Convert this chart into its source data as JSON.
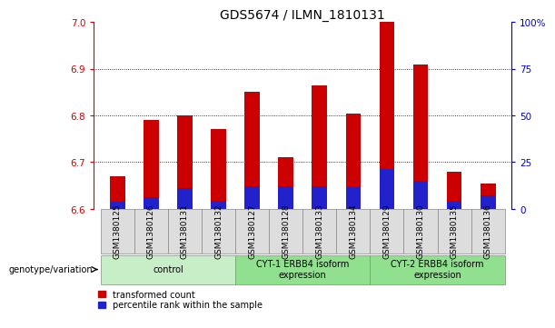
{
  "title": "GDS5674 / ILMN_1810131",
  "samples": [
    "GSM1380125",
    "GSM1380126",
    "GSM1380131",
    "GSM1380132",
    "GSM1380127",
    "GSM1380128",
    "GSM1380133",
    "GSM1380134",
    "GSM1380129",
    "GSM1380130",
    "GSM1380135",
    "GSM1380136"
  ],
  "red_values": [
    6.67,
    6.79,
    6.8,
    6.77,
    6.85,
    6.71,
    6.865,
    6.805,
    7.0,
    6.91,
    6.68,
    6.655
  ],
  "blue_values": [
    6.615,
    6.625,
    6.645,
    6.618,
    6.648,
    6.648,
    6.648,
    6.647,
    6.685,
    6.66,
    6.618,
    6.628
  ],
  "base": 6.6,
  "ylim_left": [
    6.6,
    7.0
  ],
  "ylim_right": [
    0,
    100
  ],
  "right_ticks": [
    0,
    25,
    50,
    75,
    100
  ],
  "right_tick_labels": [
    "0",
    "25",
    "50",
    "75",
    "100%"
  ],
  "left_ticks": [
    6.6,
    6.7,
    6.8,
    6.9,
    7.0
  ],
  "groups": [
    {
      "label": "control",
      "start": 0,
      "end": 4
    },
    {
      "label": "CYT-1 ERBB4 isoform\nexpression",
      "start": 4,
      "end": 8
    },
    {
      "label": "CYT-2 ERBB4 isoform\nexpression",
      "start": 8,
      "end": 12
    }
  ],
  "group_colors": [
    "#c8eec8",
    "#90e090",
    "#90e090"
  ],
  "bar_color_red": "#cc0000",
  "bar_color_blue": "#2222cc",
  "bar_width": 0.45,
  "bg_color": "#ffffff",
  "plot_bg": "#ffffff",
  "axis_color_left": "#cc0000",
  "axis_color_right": "#0000cc",
  "genotype_label": "genotype/variation",
  "legend_red": "transformed count",
  "legend_blue": "percentile rank within the sample",
  "title_fontsize": 10,
  "tick_fontsize": 6.5,
  "label_fontsize": 7.5
}
